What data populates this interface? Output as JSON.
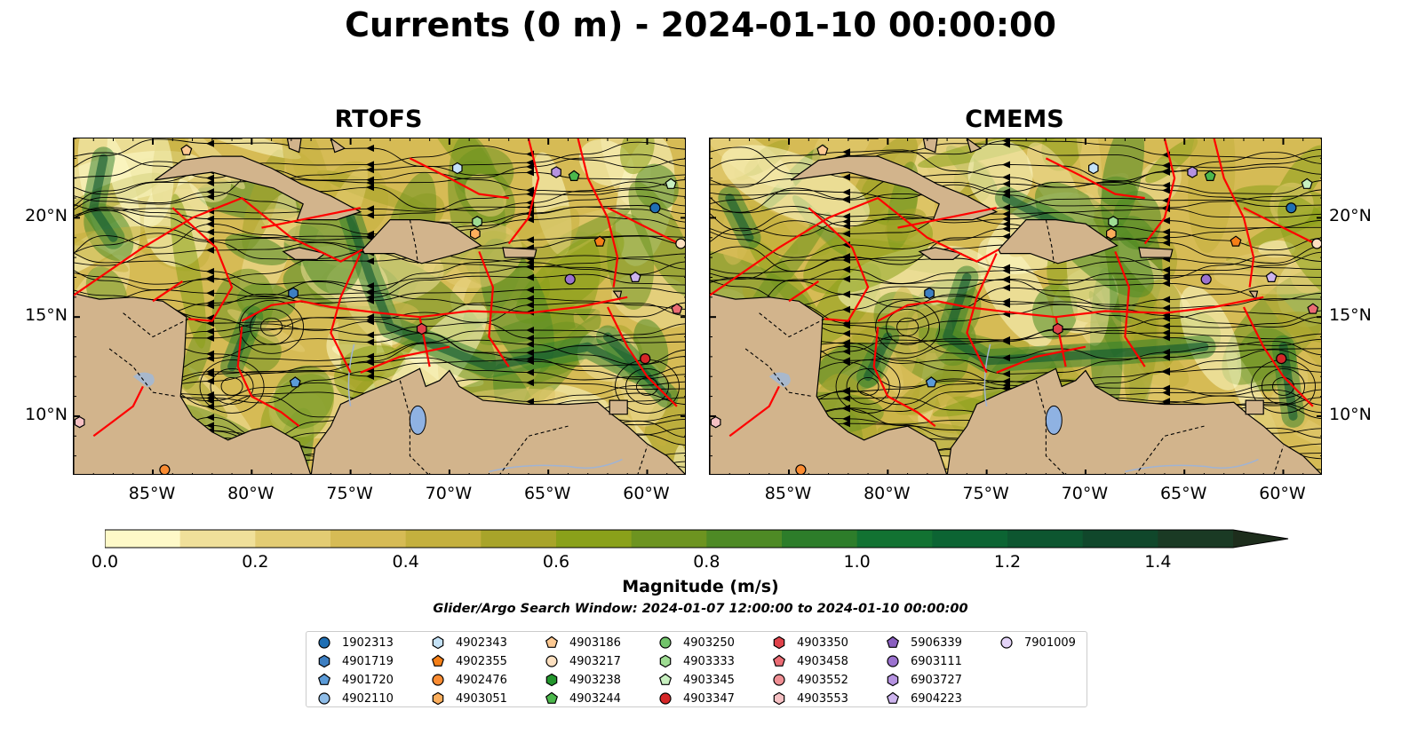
{
  "title": "Currents (0 m) - 2024-01-10 00:00:00",
  "panels": [
    {
      "title": "RTOFS"
    },
    {
      "title": "CMEMS"
    }
  ],
  "axes": {
    "lon_ticks": [
      "85°W",
      "80°W",
      "75°W",
      "70°W",
      "65°W",
      "60°W"
    ],
    "lon_values": [
      -85,
      -80,
      -75,
      -70,
      -65,
      -60
    ],
    "lat_ticks": [
      "20°N",
      "15°N",
      "10°N"
    ],
    "lat_values": [
      20,
      15,
      10
    ],
    "lon_range": [
      -89,
      -58
    ],
    "lat_range": [
      7,
      24
    ]
  },
  "colorbar": {
    "label": "Magnitude (m/s)",
    "range": [
      0,
      1.5
    ],
    "extend": "max",
    "tick_labels": [
      "0.0",
      "0.2",
      "0.4",
      "0.6",
      "0.8",
      "1.0",
      "1.2",
      "1.4"
    ],
    "tick_values": [
      0,
      0.2,
      0.4,
      0.6,
      0.8,
      1.0,
      1.2,
      1.4
    ],
    "colors": [
      "#fef9c8",
      "#f0e09a",
      "#e3cc73",
      "#d6bb55",
      "#c4b03e",
      "#a8a42a",
      "#8aa11a",
      "#6d9420",
      "#4e8a25",
      "#2d7d2a",
      "#127232",
      "#0c6433",
      "#0d5630",
      "#10472b",
      "#1a3a24",
      "#1d2d1c"
    ]
  },
  "search_window": "Glider/Argo Search Window: 2024-01-07 12:00:00 to 2024-01-10 00:00:00",
  "legend": [
    {
      "label": "1902313",
      "marker": "circle",
      "color": "#1f6fb4"
    },
    {
      "label": "4901719",
      "marker": "hexagon",
      "color": "#3d7fc2"
    },
    {
      "label": "4901720",
      "marker": "pentagon",
      "color": "#5b9bd8"
    },
    {
      "label": "4902110",
      "marker": "circle",
      "color": "#8fbde8"
    },
    {
      "label": "4902343",
      "marker": "hexagon",
      "color": "#c4e2f7"
    },
    {
      "label": "4902355",
      "marker": "pentagon",
      "color": "#f57f17"
    },
    {
      "label": "4902476",
      "marker": "circle",
      "color": "#fb8c32"
    },
    {
      "label": "4903051",
      "marker": "hexagon",
      "color": "#fcae5c"
    },
    {
      "label": "4903186",
      "marker": "pentagon",
      "color": "#fdc992"
    },
    {
      "label": "4903217",
      "marker": "circle",
      "color": "#fde0c0"
    },
    {
      "label": "4903238",
      "marker": "hexagon",
      "color": "#23962d"
    },
    {
      "label": "4903244",
      "marker": "pentagon",
      "color": "#4cb84c"
    },
    {
      "label": "4903250",
      "marker": "circle",
      "color": "#72c46b"
    },
    {
      "label": "4903333",
      "marker": "hexagon",
      "color": "#9edc92"
    },
    {
      "label": "4903345",
      "marker": "pentagon",
      "color": "#c8f0c0"
    },
    {
      "label": "4903347",
      "marker": "circle",
      "color": "#d62728"
    },
    {
      "label": "4903350",
      "marker": "hexagon",
      "color": "#e0424a"
    },
    {
      "label": "4903458",
      "marker": "pentagon",
      "color": "#eb6c74"
    },
    {
      "label": "4903552",
      "marker": "circle",
      "color": "#f08f94"
    },
    {
      "label": "4903553",
      "marker": "hexagon",
      "color": "#f6c0c3"
    },
    {
      "label": "5906339",
      "marker": "pentagon",
      "color": "#8a5fc0"
    },
    {
      "label": "6903111",
      "marker": "circle",
      "color": "#9b72cf"
    },
    {
      "label": "6903727",
      "marker": "hexagon",
      "color": "#b592e0"
    },
    {
      "label": "6904223",
      "marker": "pentagon",
      "color": "#cdb4ee"
    },
    {
      "label": "7901009",
      "marker": "circle",
      "color": "#e4d4f8"
    }
  ],
  "map_colors": {
    "land": "#d2b48c",
    "lake": "#8fb2e2",
    "eez_boundary": "#ff0000",
    "country_boundary": "#000000",
    "streamline": "#000000"
  },
  "float_positions": [
    {
      "id": "4903186",
      "lon": -83.3,
      "lat": 23.4
    },
    {
      "id": "4902343",
      "lon": -69.6,
      "lat": 22.5
    },
    {
      "id": "6903727",
      "lon": -64.6,
      "lat": 22.3
    },
    {
      "id": "4903244",
      "lon": -63.7,
      "lat": 22.1
    },
    {
      "id": "4903345",
      "lon": -58.8,
      "lat": 21.7
    },
    {
      "id": "1902313",
      "lon": -59.6,
      "lat": 20.5
    },
    {
      "id": "4903333",
      "lon": -68.6,
      "lat": 19.8
    },
    {
      "id": "4903051",
      "lon": -68.7,
      "lat": 19.2
    },
    {
      "id": "4903217",
      "lon": -58.3,
      "lat": 18.7
    },
    {
      "id": "4902355",
      "lon": -62.4,
      "lat": 18.8
    },
    {
      "id": "6903111",
      "lon": -63.9,
      "lat": 16.9
    },
    {
      "id": "6904223",
      "lon": -60.6,
      "lat": 17.0
    },
    {
      "id": "4901719",
      "lon": -77.9,
      "lat": 16.2
    },
    {
      "id": "4903350",
      "lon": -71.4,
      "lat": 14.4
    },
    {
      "id": "4903458",
      "lon": -58.5,
      "lat": 15.4
    },
    {
      "id": "4903347",
      "lon": -60.1,
      "lat": 12.9
    },
    {
      "id": "4901720",
      "lon": -77.8,
      "lat": 11.7
    },
    {
      "id": "4902476",
      "lon": -84.4,
      "lat": 7.3
    },
    {
      "id": "4903553",
      "lon": -88.7,
      "lat": 9.7
    }
  ]
}
